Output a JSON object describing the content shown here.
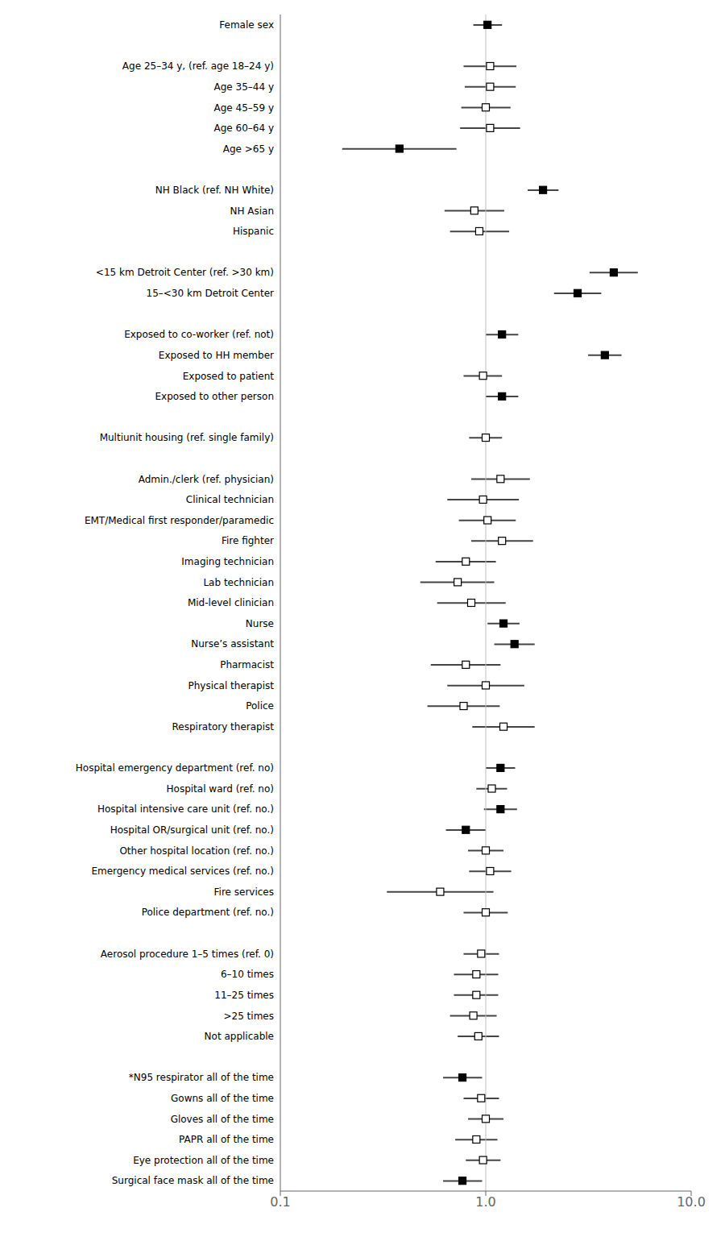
{
  "chart_data": {
    "type": "forest",
    "orientation": "horizontal",
    "log": "x",
    "grid": false,
    "marker": "square",
    "xlim": [
      0.1,
      10.0
    ],
    "xticks": [
      0.1,
      {
        "value": 1.0,
        "label": "1.0"
      },
      {
        "value": 10.0,
        "label": "10.0"
      }
    ],
    "reference_line": 1.0,
    "categories": [
      "Female sex",
      null,
      "Age 25–34 y, (ref. age 18–24 y)",
      "Age 35–44 y",
      "Age 45–59 y",
      "Age 60–64 y",
      "Age >65 y",
      null,
      "NH Black (ref. NH White)",
      "NH Asian",
      "Hispanic",
      null,
      "<15 km Detroit Center (ref. >30 km)",
      "15–<30 km Detroit Center",
      null,
      "Exposed to co-worker (ref. not)",
      "Exposed to HH member",
      "Exposed to patient",
      "Exposed to other person",
      null,
      "Multiunit housing (ref. single family)",
      null,
      "Admin./clerk (ref. physician)",
      "Clinical technician",
      "EMT/Medical first responder/paramedic",
      "Fire fighter",
      "Imaging technician",
      "Lab technician",
      "Mid-level clinician",
      "Nurse",
      "Nurse’s assistant",
      "Pharmacist",
      "Physical therapist",
      "Police",
      "Respiratory therapist",
      null,
      "Hospital emergency department (ref. no)",
      "Hospital ward (ref. no)",
      "Hospital intensive care unit (ref. no.)",
      "Hospital OR/surgical unit (ref. no.)",
      "Other hospital location (ref. no.)",
      "Emergency medical services (ref. no.)",
      "Fire services",
      "Police department (ref. no.)",
      null,
      "Aerosol procedure 1–5 times (ref. 0)",
      "6–10 times",
      "11–25 times",
      ">25 times",
      "Not applicable",
      null,
      "*N95 respirator all of the time",
      "Gowns all of the time",
      "Gloves all of the time",
      "PAPR all of the time",
      "Eye protection all of the time",
      "Surgical face mask all of the time"
    ],
    "values": [
      1.02,
      null,
      1.05,
      1.05,
      1.0,
      1.05,
      0.38,
      null,
      1.9,
      0.88,
      0.93,
      null,
      4.2,
      2.8,
      null,
      1.2,
      3.8,
      0.97,
      1.2,
      null,
      1.0,
      null,
      1.18,
      0.97,
      1.02,
      1.2,
      0.8,
      0.73,
      0.85,
      1.22,
      1.38,
      0.8,
      1.0,
      0.78,
      1.22,
      null,
      1.18,
      1.07,
      1.18,
      0.8,
      1.0,
      1.05,
      0.6,
      1.0,
      null,
      0.95,
      0.9,
      0.9,
      0.87,
      0.92,
      null,
      0.77,
      0.95,
      1.0,
      0.9,
      0.97,
      0.77
    ],
    "ci_low": [
      0.87,
      null,
      0.78,
      0.79,
      0.76,
      0.75,
      0.2,
      null,
      1.6,
      0.63,
      0.67,
      null,
      3.2,
      2.15,
      null,
      1.0,
      3.15,
      0.78,
      1.0,
      null,
      0.83,
      null,
      0.85,
      0.65,
      0.74,
      0.85,
      0.57,
      0.48,
      0.58,
      1.02,
      1.1,
      0.54,
      0.65,
      0.52,
      0.86,
      null,
      1.0,
      0.9,
      0.98,
      0.64,
      0.82,
      0.83,
      0.33,
      0.78,
      null,
      0.78,
      0.7,
      0.7,
      0.67,
      0.73,
      null,
      0.62,
      0.78,
      0.82,
      0.71,
      0.8,
      0.62
    ],
    "ci_high": [
      1.2,
      null,
      1.41,
      1.4,
      1.32,
      1.47,
      0.72,
      null,
      2.26,
      1.23,
      1.3,
      null,
      5.5,
      3.65,
      null,
      1.44,
      4.58,
      1.2,
      1.44,
      null,
      1.2,
      null,
      1.64,
      1.45,
      1.4,
      1.7,
      1.12,
      1.1,
      1.25,
      1.46,
      1.73,
      1.18,
      1.54,
      1.17,
      1.73,
      null,
      1.39,
      1.27,
      1.42,
      1.0,
      1.22,
      1.33,
      1.09,
      1.28,
      null,
      1.16,
      1.15,
      1.15,
      1.13,
      1.16,
      null,
      0.96,
      1.16,
      1.22,
      1.14,
      1.18,
      0.96
    ],
    "colors": [
      "#000000",
      null,
      "#ffffff",
      "#ffffff",
      "#ffffff",
      "#ffffff",
      "#000000",
      null,
      "#000000",
      "#ffffff",
      "#ffffff",
      null,
      "#000000",
      "#000000",
      null,
      "#000000",
      "#000000",
      "#ffffff",
      "#000000",
      null,
      "#ffffff",
      null,
      "#ffffff",
      "#ffffff",
      "#ffffff",
      "#ffffff",
      "#ffffff",
      "#ffffff",
      "#ffffff",
      "#000000",
      "#000000",
      "#ffffff",
      "#ffffff",
      "#ffffff",
      "#ffffff",
      null,
      "#000000",
      "#ffffff",
      "#000000",
      "#000000",
      "#ffffff",
      "#ffffff",
      "#ffffff",
      "#ffffff",
      null,
      "#ffffff",
      "#ffffff",
      "#ffffff",
      "#ffffff",
      "#ffffff",
      null,
      "#000000",
      "#ffffff",
      "#ffffff",
      "#ffffff",
      "#ffffff",
      "#000000"
    ]
  }
}
